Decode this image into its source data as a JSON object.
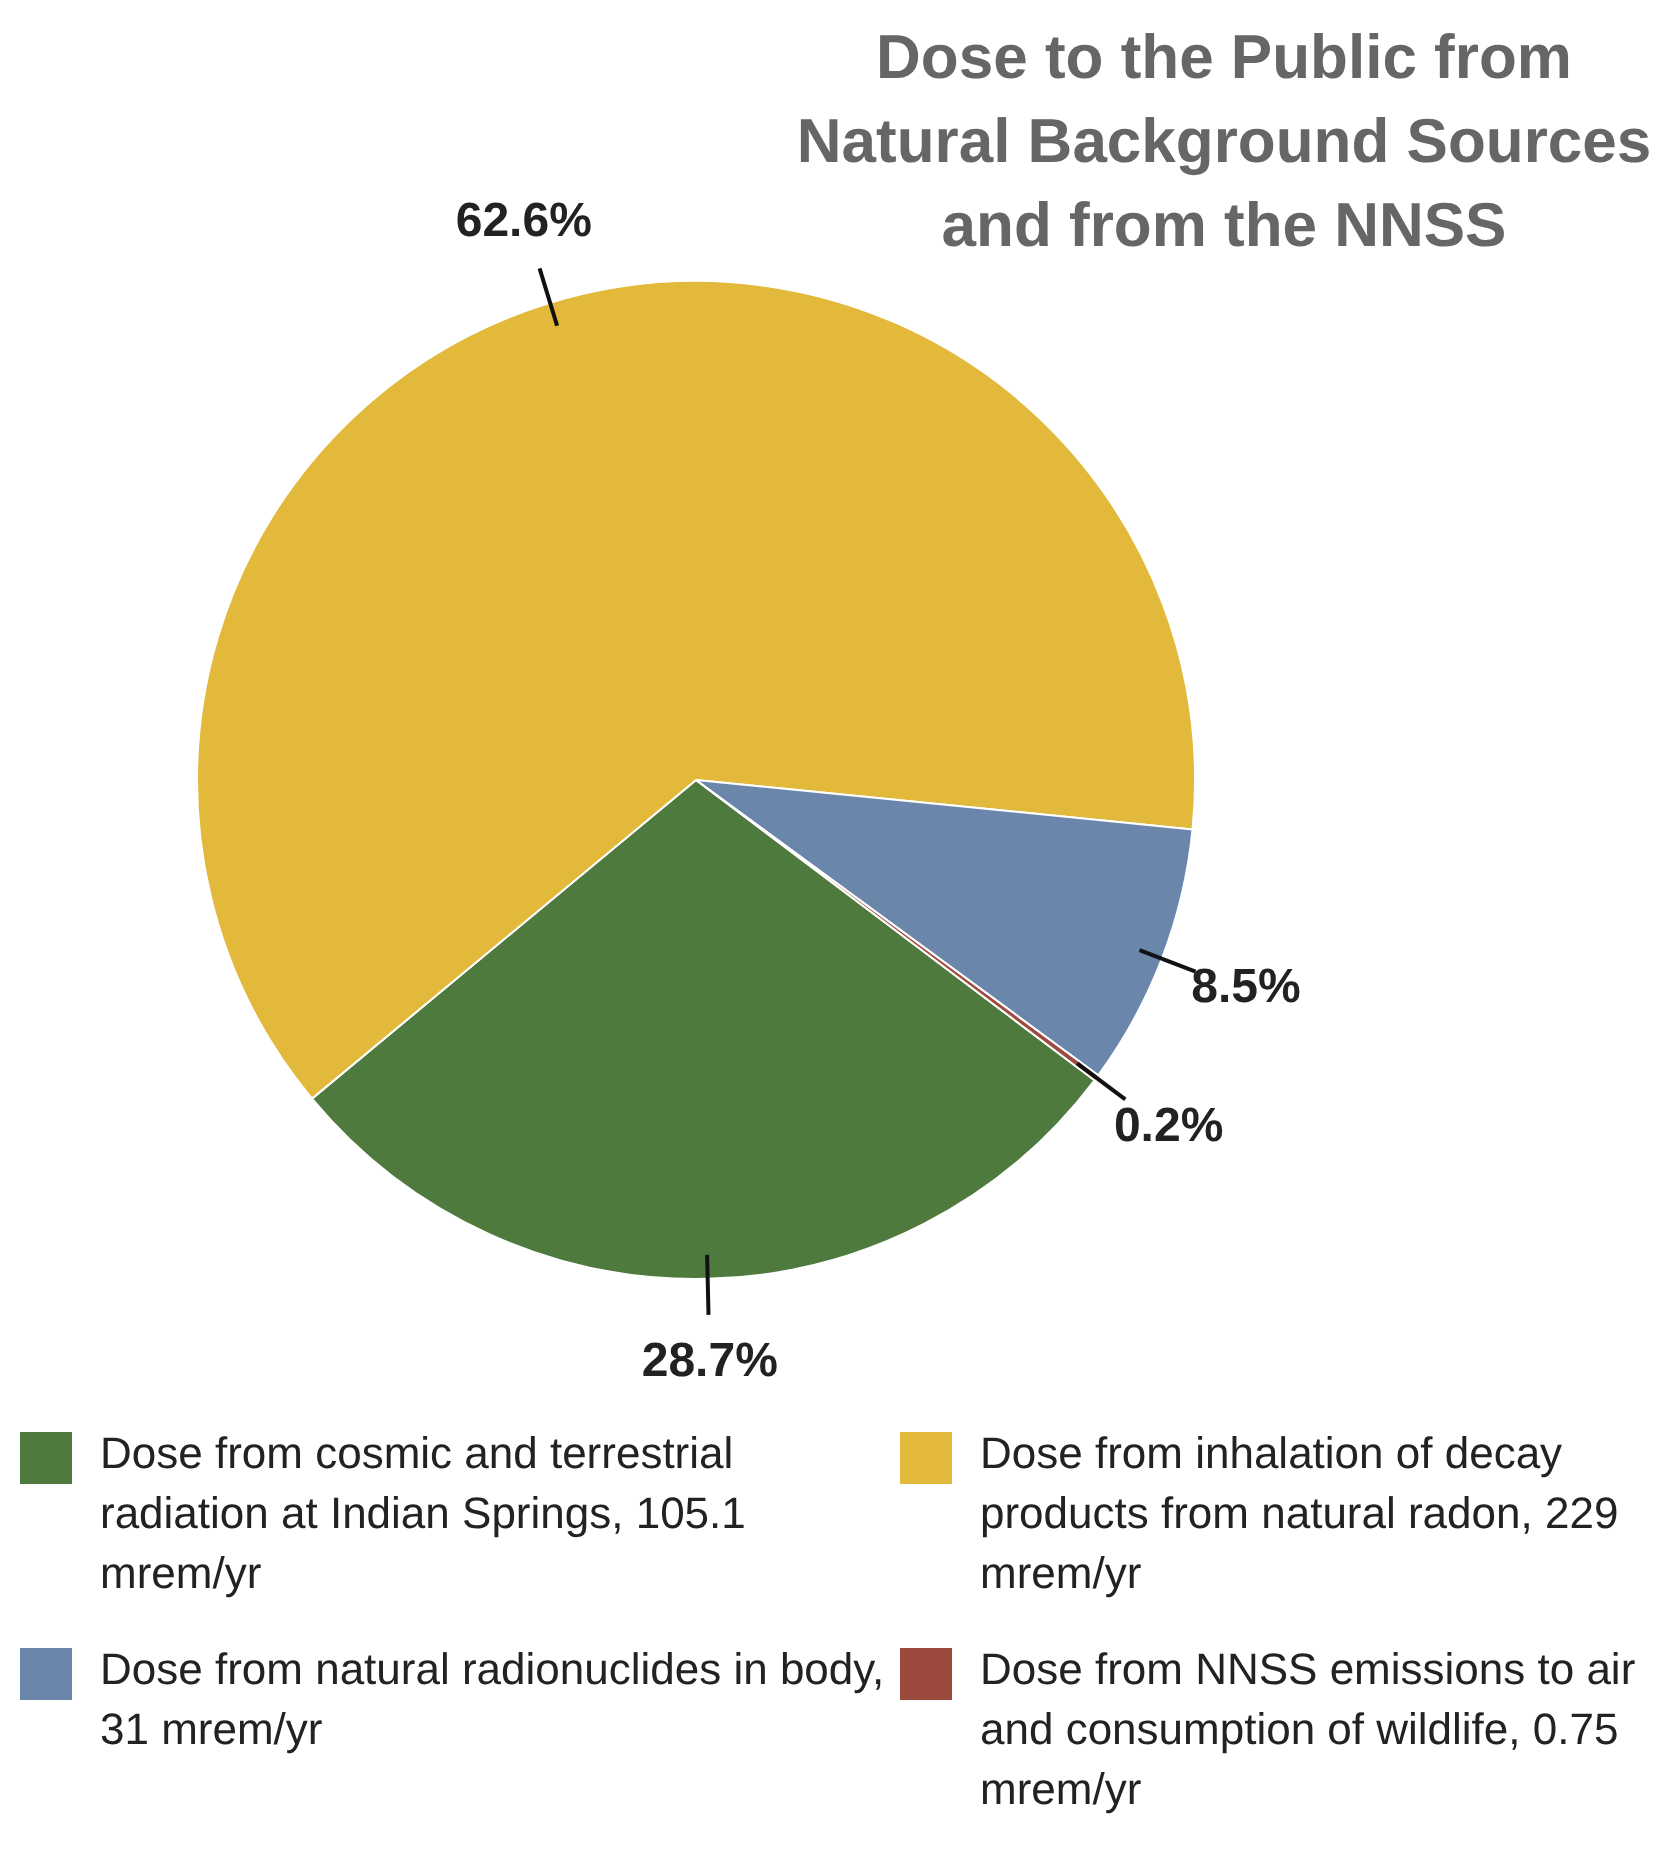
{
  "chart_data": {
    "type": "pie",
    "title": "Dose to the Public from Natural Background Sources and from the NNSS",
    "categories": [
      "Dose from cosmic and terrestrial radiation at Indian Springs, 105.1 mrem/yr",
      "Dose from inhalation of decay products from natural radon, 229 mrem/yr",
      "Dose from natural radionuclides in body, 31 mrem/yr",
      "Dose from NNSS emissions to air and consumption of wildlife, 0.75 mrem/yr"
    ],
    "values": [
      28.7,
      62.6,
      8.5,
      0.2
    ],
    "value_labels": [
      "28.7%",
      "62.6%",
      "8.5%",
      "0.2%"
    ],
    "colors": [
      "#4e7a3e",
      "#e2b93b",
      "#6a86ab",
      "#9c4a3e"
    ],
    "legend": "bottom"
  }
}
